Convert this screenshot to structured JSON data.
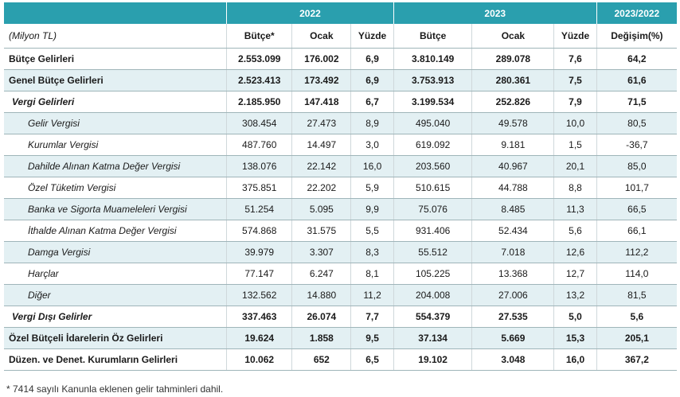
{
  "header": {
    "year1": "2022",
    "year2": "2023",
    "change": "2023/2022"
  },
  "subheader": {
    "unit": "(Milyon TL)",
    "col1": "Bütçe*",
    "col2": "Ocak",
    "col3": "Yüzde",
    "col4": "Bütçe",
    "col5": "Ocak",
    "col6": "Yüzde",
    "col7": "Değişim(%)"
  },
  "rows": [
    {
      "label": "Bütçe Gelirleri",
      "v": [
        "2.553.099",
        "176.002",
        "6,9",
        "3.810.149",
        "289.078",
        "7,6",
        "64,2"
      ]
    },
    {
      "label": "Genel Bütçe Gelirleri",
      "v": [
        "2.523.413",
        "173.492",
        "6,9",
        "3.753.913",
        "280.361",
        "7,5",
        "61,6"
      ]
    },
    {
      "label": "Vergi Gelirleri",
      "v": [
        "2.185.950",
        "147.418",
        "6,7",
        "3.199.534",
        "252.826",
        "7,9",
        "71,5"
      ]
    },
    {
      "label": "Gelir Vergisi",
      "v": [
        "308.454",
        "27.473",
        "8,9",
        "495.040",
        "49.578",
        "10,0",
        "80,5"
      ]
    },
    {
      "label": "Kurumlar Vergisi",
      "v": [
        "487.760",
        "14.497",
        "3,0",
        "619.092",
        "9.181",
        "1,5",
        "-36,7"
      ]
    },
    {
      "label": "Dahilde Alınan Katma Değer Vergisi",
      "v": [
        "138.076",
        "22.142",
        "16,0",
        "203.560",
        "40.967",
        "20,1",
        "85,0"
      ]
    },
    {
      "label": "Özel Tüketim Vergisi",
      "v": [
        "375.851",
        "22.202",
        "5,9",
        "510.615",
        "44.788",
        "8,8",
        "101,7"
      ]
    },
    {
      "label": "Banka ve Sigorta Muameleleri Vergisi",
      "v": [
        "51.254",
        "5.095",
        "9,9",
        "75.076",
        "8.485",
        "11,3",
        "66,5"
      ]
    },
    {
      "label": "İthalde Alınan Katma Değer Vergisi",
      "v": [
        "574.868",
        "31.575",
        "5,5",
        "931.406",
        "52.434",
        "5,6",
        "66,1"
      ]
    },
    {
      "label": "Damga Vergisi",
      "v": [
        "39.979",
        "3.307",
        "8,3",
        "55.512",
        "7.018",
        "12,6",
        "112,2"
      ]
    },
    {
      "label": "Harçlar",
      "v": [
        "77.147",
        "6.247",
        "8,1",
        "105.225",
        "13.368",
        "12,7",
        "114,0"
      ]
    },
    {
      "label": "Diğer",
      "v": [
        "132.562",
        "14.880",
        "11,2",
        "204.008",
        "27.006",
        "13,2",
        "81,5"
      ]
    },
    {
      "label": "Vergi Dışı Gelirler",
      "v": [
        "337.463",
        "26.074",
        "7,7",
        "554.379",
        "27.535",
        "5,0",
        "5,6"
      ]
    },
    {
      "label": "Özel Bütçeli İdarelerin Öz Gelirleri",
      "v": [
        "19.624",
        "1.858",
        "9,5",
        "37.134",
        "5.669",
        "15,3",
        "205,1"
      ]
    },
    {
      "label": "Düzen. ve Denet. Kurumların Gelirleri",
      "v": [
        "10.062",
        "652",
        "6,5",
        "19.102",
        "3.048",
        "16,0",
        "367,2"
      ]
    }
  ],
  "footnote": "* 7414 sayılı Kanunla eklenen gelir tahminleri dahil."
}
